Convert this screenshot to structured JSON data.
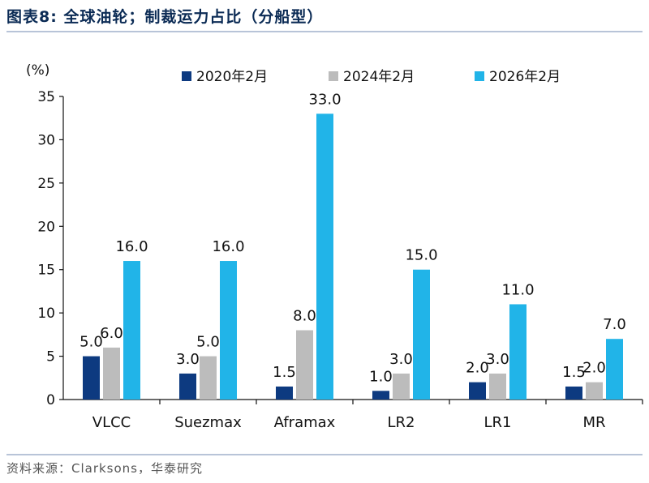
{
  "title": "图表8:  全球油轮；制裁运力占比（分船型）",
  "source": "资料来源：Clarksons，华泰研究",
  "colors": {
    "s2020": "#0d3a80",
    "s2024": "#bcbcbc",
    "s2026": "#21b4e8"
  },
  "chart_data": {
    "type": "bar",
    "title": "全球油轮；制裁运力占比（分船型）",
    "ylabel": "(%)",
    "xlabel": "",
    "ylim": [
      0,
      35
    ],
    "yticks": [
      0,
      5,
      10,
      15,
      20,
      25,
      30,
      35
    ],
    "categories": [
      "VLCC",
      "Suezmax",
      "Aframax",
      "LR2",
      "LR1",
      "MR"
    ],
    "series": [
      {
        "name": "2020年2月",
        "values": [
          5.0,
          3.0,
          1.5,
          1.0,
          2.0,
          1.5
        ],
        "labels": [
          "5.0",
          "3.0",
          "1.5",
          "1.0",
          "2.0",
          "1.5"
        ]
      },
      {
        "name": "2024年2月",
        "values": [
          6.0,
          5.0,
          8.0,
          3.0,
          3.0,
          2.0
        ],
        "labels": [
          "6.0",
          "5.0",
          "8.0",
          "3.0",
          "3.0",
          "2.0"
        ]
      },
      {
        "name": "2026年2月",
        "values": [
          16.0,
          16.0,
          33.0,
          15.0,
          11.0,
          7.0
        ],
        "labels": [
          "16.0",
          "16.0",
          "33.0",
          "15.0",
          "11.0",
          "7.0"
        ]
      }
    ],
    "legend_position": "top",
    "grid": false
  }
}
